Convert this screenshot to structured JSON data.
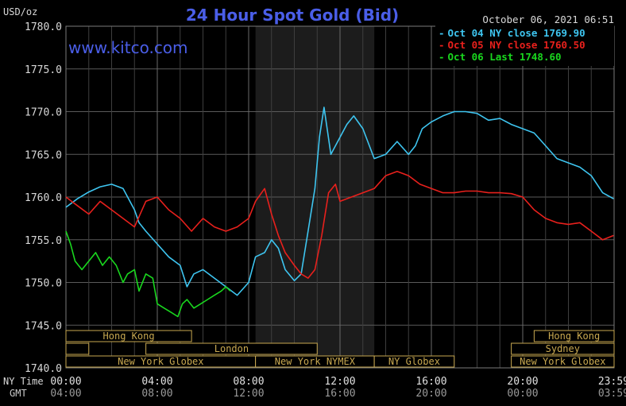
{
  "chart_data": {
    "type": "line",
    "title": "24 Hour Spot Gold (Bid)",
    "ylabel": "USD/oz",
    "timestamp": "October 06, 2021 06:51",
    "watermark": "www.kitco.com",
    "ylim": [
      1740,
      1780
    ],
    "yticks": [
      "1780.0",
      "1775.0",
      "1770.0",
      "1765.0",
      "1760.0",
      "1755.0",
      "1750.0",
      "1745.0",
      "1740.0"
    ],
    "ytick_values": [
      1780,
      1775,
      1770,
      1765,
      1760,
      1755,
      1750,
      1745,
      1740
    ],
    "xlim": [
      0,
      24
    ],
    "xaxis": {
      "row1_label": "NY Time",
      "row2_label": "GMT",
      "row1_ticks": [
        "00:00",
        "04:00",
        "08:00",
        "12:00",
        "16:00",
        "20:00",
        "23:59"
      ],
      "row2_ticks": [
        "04:00",
        "08:00",
        "12:00",
        "16:00",
        "20:00",
        "00:00",
        "03:59"
      ],
      "tick_hours": [
        0,
        4,
        8,
        12,
        16,
        20,
        23.98
      ]
    },
    "grid": true,
    "legend_position": "top-right",
    "sessions": [
      {
        "name": "Hong Kong",
        "start": 0,
        "end": 5.5,
        "row": 0
      },
      {
        "name": "Hong Kong",
        "start": 20.5,
        "end": 24,
        "row": 0
      },
      {
        "name": "",
        "start": 0,
        "end": 1,
        "row": 1
      },
      {
        "name": "London",
        "start": 3.5,
        "end": 11,
        "row": 1
      },
      {
        "name": "Sydney",
        "start": 19.5,
        "end": 24,
        "row": 1
      },
      {
        "name": "New York Globex",
        "start": 0,
        "end": 8.3,
        "row": 2
      },
      {
        "name": "New York NYMEX",
        "start": 8.3,
        "end": 13.5,
        "row": 2
      },
      {
        "name": "NY Globex",
        "start": 13.5,
        "end": 17,
        "row": 2
      },
      {
        "name": "New York Globex",
        "start": 19.5,
        "end": 24,
        "row": 2
      }
    ],
    "shaded_region": [
      8.3,
      13.5
    ],
    "series": [
      {
        "name": "Oct 04 NY close 1769.90",
        "color": "#3ec5f0",
        "x": [
          0,
          0.5,
          1,
          1.5,
          2,
          2.5,
          3,
          3.2,
          3.5,
          4,
          4.5,
          5,
          5.3,
          5.6,
          6,
          6.5,
          7,
          7.5,
          8,
          8.3,
          8.7,
          9,
          9.3,
          9.6,
          10,
          10.3,
          10.6,
          10.9,
          11.1,
          11.3,
          11.6,
          12,
          12.3,
          12.6,
          13,
          13.5,
          14,
          14.5,
          15,
          15.3,
          15.6,
          16,
          16.5,
          17,
          17.5,
          18,
          18.5,
          19,
          19.5,
          20,
          20.5,
          21,
          21.5,
          22,
          22.5,
          23,
          23.5,
          23.98
        ],
        "y": [
          1758.8,
          1759.8,
          1760.6,
          1761.2,
          1761.5,
          1761.0,
          1758.5,
          1757.0,
          1756.0,
          1754.5,
          1753.0,
          1752.0,
          1749.5,
          1751.0,
          1751.5,
          1750.5,
          1749.5,
          1748.5,
          1750.0,
          1753.0,
          1753.5,
          1755.0,
          1754.0,
          1751.5,
          1750.2,
          1751.0,
          1756.0,
          1761.0,
          1767.0,
          1770.5,
          1765.0,
          1767.0,
          1768.5,
          1769.5,
          1768.0,
          1764.5,
          1765.0,
          1766.5,
          1765.0,
          1766.0,
          1768.0,
          1768.8,
          1769.5,
          1770.0,
          1770.0,
          1769.8,
          1769.0,
          1769.2,
          1768.5,
          1768.0,
          1767.5,
          1766.0,
          1764.5,
          1764.0,
          1763.5,
          1762.5,
          1760.5,
          1759.8
        ]
      },
      {
        "name": "Oct 05 NY close 1760.50",
        "color": "#e8201c",
        "x": [
          0,
          0.5,
          1,
          1.5,
          2,
          2.5,
          3,
          3.5,
          4,
          4.5,
          5,
          5.5,
          6,
          6.5,
          7,
          7.5,
          8,
          8.3,
          8.7,
          9,
          9.3,
          9.6,
          10,
          10.3,
          10.6,
          10.9,
          11.2,
          11.5,
          11.8,
          12,
          12.5,
          13,
          13.5,
          14,
          14.5,
          15,
          15.5,
          16,
          16.5,
          17,
          17.5,
          18,
          18.5,
          19,
          19.5,
          20,
          20.5,
          21,
          21.5,
          22,
          22.5,
          23,
          23.5,
          23.98
        ],
        "y": [
          1760.0,
          1759.0,
          1758.0,
          1759.5,
          1758.5,
          1757.5,
          1756.5,
          1759.5,
          1760.0,
          1758.5,
          1757.5,
          1756.0,
          1757.5,
          1756.5,
          1756.0,
          1756.5,
          1757.5,
          1759.5,
          1761.0,
          1758.0,
          1755.5,
          1753.5,
          1752.0,
          1751.0,
          1750.5,
          1751.5,
          1755.5,
          1760.5,
          1761.5,
          1759.5,
          1760.0,
          1760.5,
          1761.0,
          1762.5,
          1763.0,
          1762.5,
          1761.5,
          1761.0,
          1760.5,
          1760.5,
          1760.7,
          1760.7,
          1760.5,
          1760.5,
          1760.4,
          1760.0,
          1758.5,
          1757.5,
          1757.0,
          1756.8,
          1757.0,
          1756.0,
          1755.0,
          1755.5
        ]
      },
      {
        "name": "Oct 06 Last 1748.60",
        "color": "#19d71e",
        "x": [
          0,
          0.2,
          0.4,
          0.7,
          1,
          1.3,
          1.6,
          1.9,
          2.2,
          2.5,
          2.7,
          3,
          3.2,
          3.5,
          3.8,
          4,
          4.3,
          4.6,
          4.9,
          5.1,
          5.3,
          5.6,
          5.9,
          6.2,
          6.5,
          6.8,
          7,
          7.2
        ],
        "y": [
          1756.0,
          1754.5,
          1752.5,
          1751.5,
          1752.5,
          1753.5,
          1752.0,
          1753.0,
          1752.0,
          1750.0,
          1751.0,
          1751.5,
          1749.0,
          1751.0,
          1750.5,
          1747.5,
          1747.0,
          1746.5,
          1746.0,
          1747.5,
          1748.0,
          1747.0,
          1747.5,
          1748.0,
          1748.5,
          1749.0,
          1749.5,
          1749.0
        ]
      }
    ]
  }
}
